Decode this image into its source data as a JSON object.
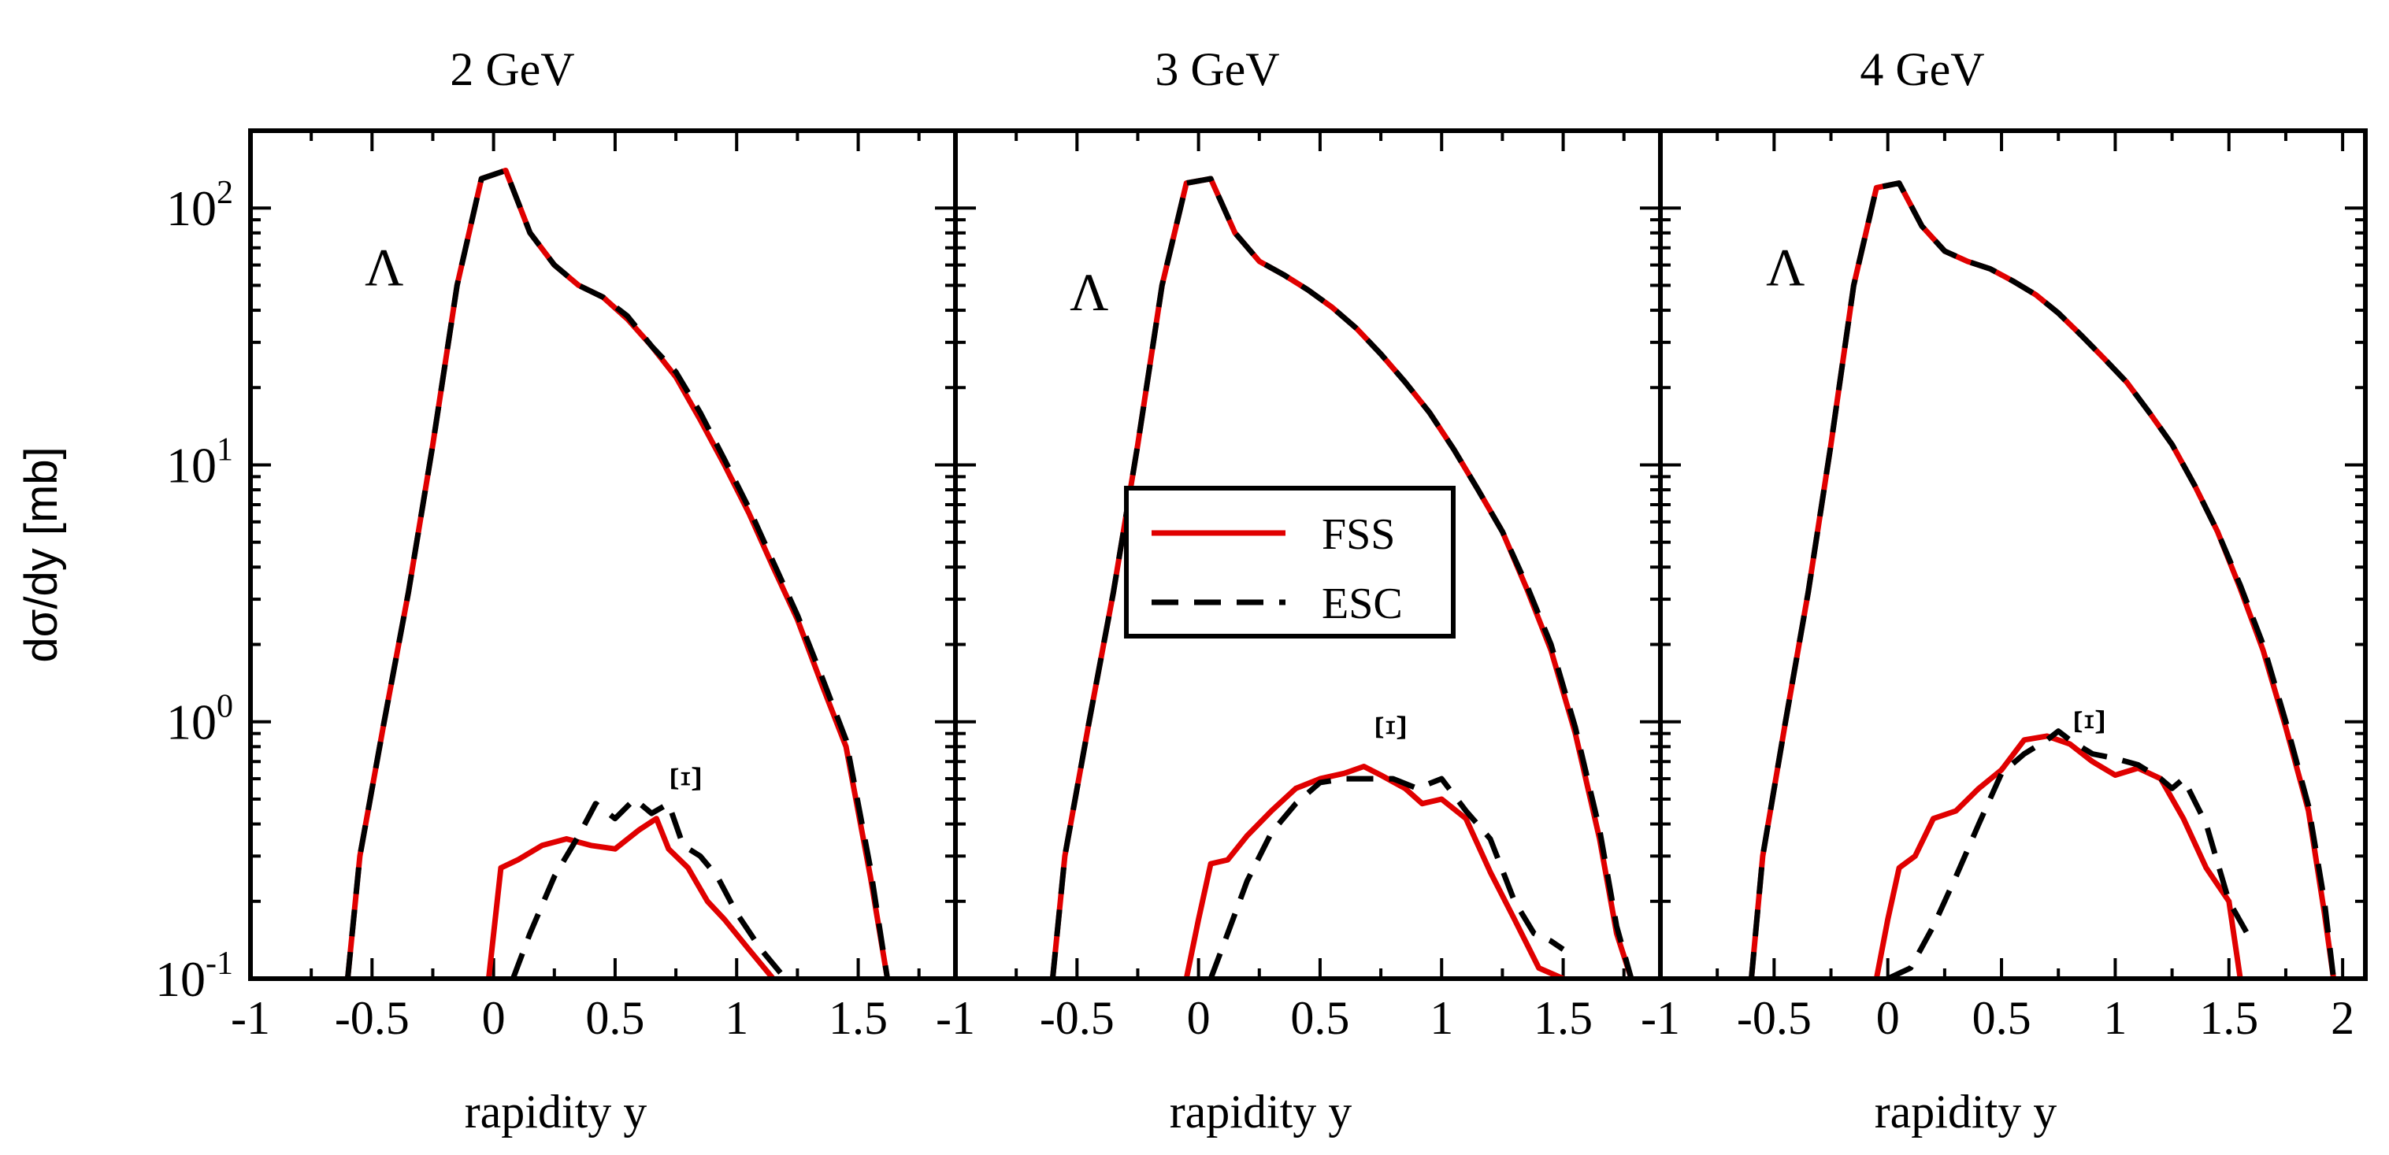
{
  "figure": {
    "ylabel": "dσ/dy [mb]",
    "ylabel_prefix": "d",
    "ylabel_sigma": "σ",
    "ylabel_rest": "/dy [mb]",
    "yscale": "log",
    "ylim": [
      0.1,
      200
    ],
    "y_ticks": [
      {
        "base": "10",
        "exp": "2",
        "value": 100
      },
      {
        "base": "10",
        "exp": "1",
        "value": 10
      },
      {
        "base": "10",
        "exp": "0",
        "value": 1
      },
      {
        "base": "10",
        "exp": "-1",
        "value": 0.1
      }
    ],
    "xlabel": "rapidity y"
  },
  "legend": {
    "placement": "center of middle panel",
    "entries": [
      {
        "label": "FSS",
        "color": "#e00000",
        "dash": "solid"
      },
      {
        "label": "ESC",
        "color": "#000000",
        "dash": "dashed"
      }
    ]
  },
  "chart_data": [
    {
      "type": "line",
      "title": "2 GeV",
      "xlabel": "rapidity y",
      "ylabel": "dσ/dy [mb]",
      "xlim": [
        -1,
        1.9
      ],
      "ylim": [
        0.1,
        200
      ],
      "x_ticks": [
        "-1",
        "-0.5",
        "0",
        "0.5",
        "1",
        "1.5"
      ],
      "x_tick_values": [
        -1,
        -0.5,
        0,
        0.5,
        1,
        1.5
      ],
      "annotations": [
        {
          "text": "Λ",
          "x": -0.45,
          "y": 50
        },
        {
          "text": "Ξ",
          "x": 0.85,
          "y": 0.6,
          "rotated": true
        }
      ],
      "series": [
        {
          "name": "Λ FSS",
          "legend": "FSS",
          "x": [
            -0.6,
            -0.55,
            -0.45,
            -0.35,
            -0.25,
            -0.15,
            -0.05,
            0.05,
            0.15,
            0.25,
            0.35,
            0.45,
            0.55,
            0.65,
            0.75,
            0.85,
            0.95,
            1.05,
            1.15,
            1.25,
            1.35,
            1.45,
            1.55,
            1.62
          ],
          "y": [
            0.1,
            0.3,
            1.0,
            3.2,
            12,
            50,
            130,
            140,
            80,
            60,
            50,
            45,
            37,
            29,
            22,
            15,
            10,
            6.5,
            4,
            2.5,
            1.4,
            0.8,
            0.25,
            0.1
          ]
        },
        {
          "name": "Λ ESC",
          "legend": "ESC",
          "x": [
            -0.6,
            -0.55,
            -0.45,
            -0.35,
            -0.25,
            -0.15,
            -0.05,
            0.05,
            0.15,
            0.25,
            0.35,
            0.45,
            0.55,
            0.65,
            0.75,
            0.85,
            0.95,
            1.05,
            1.15,
            1.25,
            1.35,
            1.45,
            1.55,
            1.62
          ],
          "y": [
            0.1,
            0.3,
            1.0,
            3.2,
            12,
            50,
            130,
            140,
            80,
            60,
            50,
            45,
            38,
            29,
            23,
            16,
            10.5,
            6.8,
            4.2,
            2.6,
            1.5,
            0.85,
            0.27,
            0.1
          ]
        },
        {
          "name": "Ξ FSS",
          "legend": "FSS",
          "x": [
            -0.02,
            0.03,
            0.1,
            0.2,
            0.3,
            0.4,
            0.5,
            0.6,
            0.67,
            0.72,
            0.8,
            0.88,
            0.95,
            1.05,
            1.15
          ],
          "y": [
            0.1,
            0.27,
            0.29,
            0.33,
            0.35,
            0.33,
            0.32,
            0.38,
            0.42,
            0.32,
            0.27,
            0.2,
            0.17,
            0.13,
            0.1
          ]
        },
        {
          "name": "Ξ ESC",
          "legend": "ESC",
          "x": [
            0.08,
            0.15,
            0.25,
            0.35,
            0.42,
            0.5,
            0.58,
            0.65,
            0.72,
            0.78,
            0.85,
            0.92,
            1.0,
            1.1,
            1.2
          ],
          "y": [
            0.1,
            0.15,
            0.25,
            0.36,
            0.48,
            0.42,
            0.5,
            0.44,
            0.48,
            0.33,
            0.3,
            0.25,
            0.18,
            0.13,
            0.1
          ]
        }
      ]
    },
    {
      "type": "line",
      "title": "3 GeV",
      "xlabel": "rapidity y",
      "ylabel": "dσ/dy [mb]",
      "xlim": [
        -1,
        1.9
      ],
      "ylim": [
        0.1,
        200
      ],
      "x_ticks": [
        "-1",
        "-0.5",
        "0",
        "0.5",
        "1",
        "1.5"
      ],
      "x_tick_values": [
        -1,
        -0.5,
        0,
        0.5,
        1,
        1.5
      ],
      "annotations": [
        {
          "text": "Λ",
          "x": -0.45,
          "y": 40
        },
        {
          "text": "Ξ",
          "x": 0.85,
          "y": 0.95,
          "rotated": true
        }
      ],
      "series": [
        {
          "name": "Λ FSS",
          "legend": "FSS",
          "x": [
            -0.6,
            -0.55,
            -0.45,
            -0.35,
            -0.25,
            -0.15,
            -0.05,
            0.05,
            0.15,
            0.25,
            0.35,
            0.45,
            0.55,
            0.65,
            0.75,
            0.85,
            0.95,
            1.05,
            1.15,
            1.25,
            1.35,
            1.45,
            1.55,
            1.65,
            1.72,
            1.78
          ],
          "y": [
            0.1,
            0.3,
            1.0,
            3.2,
            12,
            50,
            125,
            130,
            80,
            62,
            55,
            48,
            41,
            34,
            27,
            21,
            16,
            11.5,
            8,
            5.5,
            3.3,
            1.9,
            0.9,
            0.35,
            0.15,
            0.1
          ]
        },
        {
          "name": "Λ ESC",
          "legend": "ESC",
          "x": [
            -0.6,
            -0.55,
            -0.45,
            -0.35,
            -0.25,
            -0.15,
            -0.05,
            0.05,
            0.15,
            0.25,
            0.35,
            0.45,
            0.55,
            0.65,
            0.75,
            0.85,
            0.95,
            1.05,
            1.15,
            1.25,
            1.35,
            1.45,
            1.55,
            1.65,
            1.72,
            1.78
          ],
          "y": [
            0.1,
            0.3,
            1.0,
            3.2,
            12,
            50,
            125,
            130,
            80,
            62,
            55,
            48,
            41,
            34,
            27,
            21,
            16,
            11.5,
            8,
            5.5,
            3.4,
            2.0,
            0.95,
            0.38,
            0.16,
            0.1
          ]
        },
        {
          "name": "Ξ FSS",
          "legend": "FSS",
          "x": [
            -0.05,
            0.0,
            0.05,
            0.12,
            0.2,
            0.3,
            0.4,
            0.5,
            0.6,
            0.68,
            0.75,
            0.85,
            0.92,
            1.0,
            1.1,
            1.2,
            1.3,
            1.4,
            1.5
          ],
          "y": [
            0.1,
            0.17,
            0.28,
            0.29,
            0.36,
            0.45,
            0.55,
            0.6,
            0.63,
            0.67,
            0.62,
            0.55,
            0.48,
            0.5,
            0.42,
            0.26,
            0.17,
            0.11,
            0.1
          ]
        },
        {
          "name": "Ξ ESC",
          "legend": "ESC",
          "x": [
            0.05,
            0.12,
            0.2,
            0.3,
            0.4,
            0.5,
            0.6,
            0.7,
            0.8,
            0.9,
            1.0,
            1.1,
            1.2,
            1.3,
            1.38,
            1.45,
            1.5
          ],
          "y": [
            0.1,
            0.15,
            0.24,
            0.37,
            0.48,
            0.58,
            0.6,
            0.6,
            0.6,
            0.55,
            0.6,
            0.45,
            0.35,
            0.2,
            0.15,
            0.14,
            0.13
          ]
        }
      ]
    },
    {
      "type": "line",
      "title": "4 GeV",
      "xlabel": "rapidity y",
      "ylabel": "dσ/dy [mb]",
      "xlim": [
        -1,
        2.1
      ],
      "ylim": [
        0.1,
        200
      ],
      "x_ticks": [
        "-1",
        "-0.5",
        "0",
        "0.5",
        "1",
        "1.5",
        "2"
      ],
      "x_tick_values": [
        -1,
        -0.5,
        0,
        0.5,
        1,
        1.5,
        2
      ],
      "annotations": [
        {
          "text": "Λ",
          "x": -0.45,
          "y": 50
        },
        {
          "text": "Ξ",
          "x": 0.95,
          "y": 1.0,
          "rotated": true
        }
      ],
      "series": [
        {
          "name": "Λ FSS",
          "legend": "FSS",
          "x": [
            -0.6,
            -0.55,
            -0.45,
            -0.35,
            -0.25,
            -0.15,
            -0.05,
            0.05,
            0.15,
            0.25,
            0.35,
            0.45,
            0.55,
            0.65,
            0.75,
            0.85,
            0.95,
            1.05,
            1.15,
            1.25,
            1.35,
            1.45,
            1.55,
            1.65,
            1.75,
            1.85,
            1.92,
            1.96
          ],
          "y": [
            0.1,
            0.3,
            1.0,
            3.2,
            12,
            50,
            120,
            125,
            85,
            68,
            62,
            58,
            52,
            46,
            39,
            32,
            26,
            21,
            16,
            12,
            8.3,
            5.5,
            3.3,
            1.9,
            0.95,
            0.45,
            0.18,
            0.1
          ]
        },
        {
          "name": "Λ ESC",
          "legend": "ESC",
          "x": [
            -0.6,
            -0.55,
            -0.45,
            -0.35,
            -0.25,
            -0.15,
            -0.05,
            0.05,
            0.15,
            0.25,
            0.35,
            0.45,
            0.55,
            0.65,
            0.75,
            0.85,
            0.95,
            1.05,
            1.15,
            1.25,
            1.35,
            1.45,
            1.55,
            1.65,
            1.75,
            1.85,
            1.92,
            1.96
          ],
          "y": [
            0.1,
            0.3,
            1.0,
            3.2,
            12,
            50,
            120,
            125,
            85,
            68,
            62,
            58,
            52,
            46,
            39,
            32,
            26,
            21,
            16,
            12,
            8.3,
            5.5,
            3.4,
            2.0,
            1.0,
            0.47,
            0.2,
            0.1
          ]
        },
        {
          "name": "Ξ FSS",
          "legend": "FSS",
          "x": [
            -0.05,
            0.0,
            0.05,
            0.12,
            0.2,
            0.3,
            0.4,
            0.5,
            0.6,
            0.7,
            0.8,
            0.9,
            1.0,
            1.1,
            1.2,
            1.3,
            1.4,
            1.5,
            1.55
          ],
          "y": [
            0.1,
            0.17,
            0.27,
            0.3,
            0.42,
            0.45,
            0.55,
            0.65,
            0.85,
            0.88,
            0.82,
            0.7,
            0.62,
            0.66,
            0.6,
            0.42,
            0.27,
            0.2,
            0.1
          ]
        },
        {
          "name": "Ξ ESC",
          "legend": "ESC",
          "x": [
            0.0,
            0.1,
            0.2,
            0.3,
            0.4,
            0.5,
            0.6,
            0.7,
            0.75,
            0.8,
            0.9,
            1.0,
            1.1,
            1.2,
            1.25,
            1.3,
            1.4,
            1.5,
            1.58
          ],
          "y": [
            0.1,
            0.11,
            0.16,
            0.25,
            0.4,
            0.63,
            0.75,
            0.85,
            0.92,
            0.85,
            0.75,
            0.72,
            0.68,
            0.6,
            0.55,
            0.6,
            0.4,
            0.2,
            0.15
          ]
        }
      ]
    }
  ]
}
